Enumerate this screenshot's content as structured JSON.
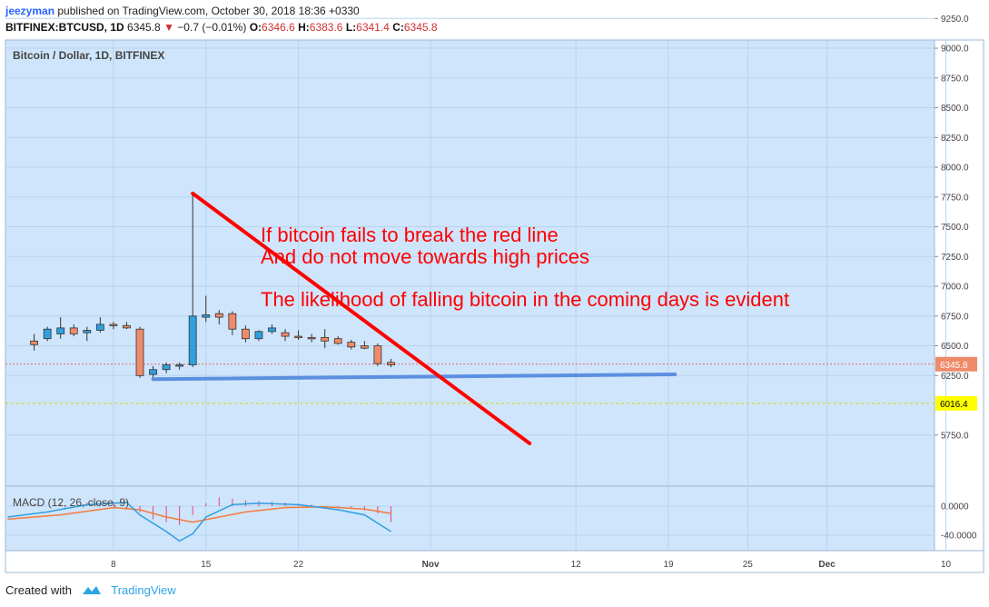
{
  "header": {
    "user": "jeezyman",
    "published": "published on TradingView.com, October 30, 2018 18:36 +0330",
    "symbol": "BITFINEX:BTCUSD, 1D",
    "last": "6345.8",
    "change": "−0.7 (−0.01%)",
    "o_label": "O:",
    "o_value": "6346.6",
    "h_label": "H:",
    "h_value": "6383.6",
    "l_label": "L:",
    "l_value": "6341.4",
    "c_label": "C:",
    "c_value": "6345.8"
  },
  "footer": {
    "created_with": "Created with",
    "brand": "TradingView"
  },
  "colors": {
    "up": "#2f9fe0",
    "down": "#ef8a6a",
    "trendline": "#ff0000",
    "support": "#5b8fe0",
    "pane_bg": "#cfe5fb",
    "macd": "#2f9fe0",
    "signal": "#f47b3b",
    "hist": "#e0457b"
  },
  "chart_data": {
    "type": "candlestick",
    "title": "Bitcoin / Dollar, 1D, BITFINEX",
    "ylim": [
      5650,
      9350
    ],
    "y_ticks": [
      "9250.0",
      "9000.0",
      "8750.0",
      "8500.0",
      "8250.0",
      "8000.0",
      "7750.0",
      "7500.0",
      "7250.0",
      "7000.0",
      "6750.0",
      "6500.0",
      "6250.0",
      "5750.0"
    ],
    "x_ticks": [
      {
        "label": "8",
        "day": 8
      },
      {
        "label": "15",
        "day": 15
      },
      {
        "label": "22",
        "day": 22
      },
      {
        "label": "Nov",
        "day": 32
      },
      {
        "label": "12",
        "day": 43
      },
      {
        "label": "19",
        "day": 50
      },
      {
        "label": "25",
        "day": 56
      },
      {
        "label": "Dec",
        "day": 62
      },
      {
        "label": "10",
        "day": 71
      }
    ],
    "candles": [
      {
        "day": 2,
        "o": 6540,
        "h": 6600,
        "l": 6460,
        "c": 6510
      },
      {
        "day": 3,
        "o": 6560,
        "h": 6660,
        "l": 6540,
        "c": 6640
      },
      {
        "day": 4,
        "o": 6600,
        "h": 6740,
        "l": 6560,
        "c": 6650
      },
      {
        "day": 5,
        "o": 6650,
        "h": 6680,
        "l": 6580,
        "c": 6600
      },
      {
        "day": 6,
        "o": 6610,
        "h": 6660,
        "l": 6540,
        "c": 6630
      },
      {
        "day": 7,
        "o": 6630,
        "h": 6740,
        "l": 6610,
        "c": 6680
      },
      {
        "day": 8,
        "o": 6680,
        "h": 6700,
        "l": 6640,
        "c": 6670
      },
      {
        "day": 9,
        "o": 6670,
        "h": 6700,
        "l": 6640,
        "c": 6650
      },
      {
        "day": 10,
        "o": 6640,
        "h": 6660,
        "l": 6230,
        "c": 6250
      },
      {
        "day": 11,
        "o": 6260,
        "h": 6330,
        "l": 6220,
        "c": 6300
      },
      {
        "day": 12,
        "o": 6300,
        "h": 6360,
        "l": 6270,
        "c": 6340
      },
      {
        "day": 13,
        "o": 6330,
        "h": 6360,
        "l": 6300,
        "c": 6340
      },
      {
        "day": 14,
        "o": 6340,
        "h": 7780,
        "l": 6320,
        "c": 6750
      },
      {
        "day": 15,
        "o": 6740,
        "h": 6920,
        "l": 6700,
        "c": 6760
      },
      {
        "day": 16,
        "o": 6770,
        "h": 6800,
        "l": 6680,
        "c": 6740
      },
      {
        "day": 17,
        "o": 6770,
        "h": 6790,
        "l": 6590,
        "c": 6640
      },
      {
        "day": 18,
        "o": 6640,
        "h": 6670,
        "l": 6530,
        "c": 6560
      },
      {
        "day": 19,
        "o": 6560,
        "h": 6630,
        "l": 6540,
        "c": 6620
      },
      {
        "day": 20,
        "o": 6620,
        "h": 6680,
        "l": 6600,
        "c": 6650
      },
      {
        "day": 21,
        "o": 6610,
        "h": 6640,
        "l": 6540,
        "c": 6580
      },
      {
        "day": 22,
        "o": 6580,
        "h": 6630,
        "l": 6550,
        "c": 6570
      },
      {
        "day": 23,
        "o": 6570,
        "h": 6600,
        "l": 6530,
        "c": 6560
      },
      {
        "day": 24,
        "o": 6570,
        "h": 6640,
        "l": 6480,
        "c": 6540
      },
      {
        "day": 25,
        "o": 6560,
        "h": 6580,
        "l": 6510,
        "c": 6520
      },
      {
        "day": 26,
        "o": 6530,
        "h": 6550,
        "l": 6470,
        "c": 6490
      },
      {
        "day": 27,
        "o": 6500,
        "h": 6540,
        "l": 6470,
        "c": 6480
      },
      {
        "day": 28,
        "o": 6500,
        "h": 6520,
        "l": 6330,
        "c": 6350
      },
      {
        "day": 29,
        "o": 6360,
        "h": 6390,
        "l": 6320,
        "c": 6340
      }
    ],
    "last_price": {
      "value": 6345.8,
      "label": "6345.8"
    },
    "level_line": {
      "value": 6016.4,
      "label": "6016.4"
    },
    "trendline": {
      "from": {
        "day": 14,
        "price": 7780
      },
      "to": {
        "day": 39.5,
        "price": 5680
      }
    },
    "support": {
      "from": {
        "day": 11,
        "price": 6220
      },
      "to": {
        "day": 50.5,
        "price": 6260
      }
    },
    "annotations": [
      "If bitcoin fails to break the red line",
      "And do not move towards high prices",
      "The likelihood of falling bitcoin in the coming days is evident"
    ],
    "macd": {
      "label": "MACD (12, 26, close, 9)",
      "y_ticks": [
        "0.0000",
        "-40.0000"
      ],
      "ylim": [
        -60,
        20
      ],
      "macd_line": [
        {
          "day": 0,
          "v": -15
        },
        {
          "day": 3,
          "v": -8
        },
        {
          "day": 6,
          "v": 2
        },
        {
          "day": 9,
          "v": 5
        },
        {
          "day": 10,
          "v": -12
        },
        {
          "day": 12,
          "v": -35
        },
        {
          "day": 13,
          "v": -48
        },
        {
          "day": 14,
          "v": -38
        },
        {
          "day": 15,
          "v": -15
        },
        {
          "day": 17,
          "v": 2
        },
        {
          "day": 19,
          "v": 4
        },
        {
          "day": 22,
          "v": 2
        },
        {
          "day": 25,
          "v": -5
        },
        {
          "day": 27,
          "v": -12
        },
        {
          "day": 29,
          "v": -35
        }
      ],
      "signal_line": [
        {
          "day": 0,
          "v": -18
        },
        {
          "day": 4,
          "v": -12
        },
        {
          "day": 8,
          "v": -2
        },
        {
          "day": 10,
          "v": -5
        },
        {
          "day": 12,
          "v": -15
        },
        {
          "day": 14,
          "v": -22
        },
        {
          "day": 16,
          "v": -15
        },
        {
          "day": 18,
          "v": -8
        },
        {
          "day": 21,
          "v": -2
        },
        {
          "day": 24,
          "v": -1
        },
        {
          "day": 27,
          "v": -4
        },
        {
          "day": 29,
          "v": -10
        }
      ],
      "histogram": [
        {
          "day": 2,
          "v": 3
        },
        {
          "day": 4,
          "v": 4
        },
        {
          "day": 6,
          "v": 5
        },
        {
          "day": 8,
          "v": 6
        },
        {
          "day": 10,
          "v": -8
        },
        {
          "day": 11,
          "v": -18
        },
        {
          "day": 12,
          "v": -22
        },
        {
          "day": 13,
          "v": -26
        },
        {
          "day": 14,
          "v": -12
        },
        {
          "day": 15,
          "v": 4
        },
        {
          "day": 16,
          "v": 12
        },
        {
          "day": 17,
          "v": 10
        },
        {
          "day": 18,
          "v": 8
        },
        {
          "day": 19,
          "v": 7
        },
        {
          "day": 20,
          "v": 6
        },
        {
          "day": 21,
          "v": 5
        },
        {
          "day": 22,
          "v": 3
        },
        {
          "day": 23,
          "v": 2
        },
        {
          "day": 25,
          "v": -2
        },
        {
          "day": 26,
          "v": -4
        },
        {
          "day": 27,
          "v": -6
        },
        {
          "day": 28,
          "v": -10
        },
        {
          "day": 29,
          "v": -22
        }
      ]
    }
  }
}
